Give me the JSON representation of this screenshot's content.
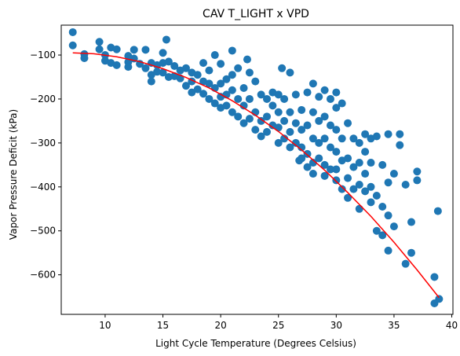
{
  "chart_data": {
    "type": "scatter",
    "title": "CAV T_LIGHT x VPD",
    "xlabel": "Light Cycle Temperature (Degrees Celsius)",
    "ylabel": "Vapor Pressure Deficit (kPa)",
    "xlim": [
      6.2,
      40.1
    ],
    "ylim": [
      -690,
      -32
    ],
    "xticks": [
      10,
      15,
      20,
      25,
      30,
      35,
      40
    ],
    "yticks": [
      -600,
      -500,
      -400,
      -300,
      -200,
      -100
    ],
    "tick_labels_x": [
      "10",
      "15",
      "20",
      "25",
      "30",
      "35",
      "40"
    ],
    "tick_labels_y": [
      "−600",
      "−500",
      "−400",
      "−300",
      "−200",
      "−100"
    ],
    "grid": false,
    "point_color": "#1f77b4",
    "fit_color": "#ff0000",
    "points": [
      [
        7.2,
        -48
      ],
      [
        7.2,
        -78
      ],
      [
        8.2,
        -98
      ],
      [
        8.2,
        -107
      ],
      [
        9.5,
        -70
      ],
      [
        9.5,
        -87
      ],
      [
        10,
        -100
      ],
      [
        10,
        -113
      ],
      [
        10.5,
        -83
      ],
      [
        10.5,
        -118
      ],
      [
        11,
        -87
      ],
      [
        11,
        -123
      ],
      [
        12,
        -102
      ],
      [
        12,
        -116
      ],
      [
        12,
        -127
      ],
      [
        12.5,
        -88
      ],
      [
        12.5,
        -108
      ],
      [
        13,
        -120
      ],
      [
        13.5,
        -88
      ],
      [
        13.5,
        -130
      ],
      [
        14,
        -118
      ],
      [
        14,
        -145
      ],
      [
        14,
        -160
      ],
      [
        14.5,
        -123
      ],
      [
        14.5,
        -138
      ],
      [
        15,
        -95
      ],
      [
        15,
        -118
      ],
      [
        15,
        -140
      ],
      [
        15.3,
        -65
      ],
      [
        15.5,
        -115
      ],
      [
        15.5,
        -150
      ],
      [
        16,
        -125
      ],
      [
        16,
        -148
      ],
      [
        16.5,
        -135
      ],
      [
        16.5,
        -153
      ],
      [
        17,
        -130
      ],
      [
        17,
        -170
      ],
      [
        17.5,
        -140
      ],
      [
        17.5,
        -160
      ],
      [
        17.5,
        -185
      ],
      [
        18,
        -145
      ],
      [
        18,
        -178
      ],
      [
        18.5,
        -118
      ],
      [
        18.5,
        -160
      ],
      [
        18.5,
        -188
      ],
      [
        19,
        -135
      ],
      [
        19,
        -165
      ],
      [
        19,
        -200
      ],
      [
        19.5,
        -100
      ],
      [
        19.5,
        -175
      ],
      [
        19.5,
        -210
      ],
      [
        20,
        -120
      ],
      [
        20,
        -165
      ],
      [
        20,
        -195
      ],
      [
        20,
        -220
      ],
      [
        20.5,
        -155
      ],
      [
        20.5,
        -190
      ],
      [
        20.5,
        -215
      ],
      [
        21,
        -90
      ],
      [
        21,
        -145
      ],
      [
        21,
        -180
      ],
      [
        21,
        -230
      ],
      [
        21.5,
        -130
      ],
      [
        21.5,
        -200
      ],
      [
        21.5,
        -240
      ],
      [
        22,
        -175
      ],
      [
        22,
        -215
      ],
      [
        22,
        -255
      ],
      [
        22.3,
        -110
      ],
      [
        22.5,
        -140
      ],
      [
        22.5,
        -200
      ],
      [
        22.5,
        -245
      ],
      [
        23,
        -160
      ],
      [
        23,
        -230
      ],
      [
        23,
        -270
      ],
      [
        23.5,
        -190
      ],
      [
        23.5,
        -250
      ],
      [
        23.5,
        -285
      ],
      [
        24,
        -200
      ],
      [
        24,
        -240
      ],
      [
        24,
        -275
      ],
      [
        24.5,
        -185
      ],
      [
        24.5,
        -215
      ],
      [
        24.5,
        -260
      ],
      [
        25,
        -190
      ],
      [
        25,
        -230
      ],
      [
        25,
        -265
      ],
      [
        25,
        -300
      ],
      [
        25.3,
        -130
      ],
      [
        25.5,
        -200
      ],
      [
        25.5,
        -250
      ],
      [
        25.5,
        -290
      ],
      [
        26,
        -140
      ],
      [
        26,
        -230
      ],
      [
        26,
        -275
      ],
      [
        26,
        -310
      ],
      [
        26.5,
        -190
      ],
      [
        26.5,
        -255
      ],
      [
        26.5,
        -300
      ],
      [
        26.8,
        -340
      ],
      [
        27,
        -225
      ],
      [
        27,
        -270
      ],
      [
        27,
        -310
      ],
      [
        27,
        -335
      ],
      [
        27.5,
        -185
      ],
      [
        27.5,
        -260
      ],
      [
        27.5,
        -325
      ],
      [
        27.5,
        -355
      ],
      [
        28,
        -165
      ],
      [
        28,
        -230
      ],
      [
        28,
        -290
      ],
      [
        28,
        -345
      ],
      [
        28,
        -370
      ],
      [
        28.5,
        -195
      ],
      [
        28.5,
        -250
      ],
      [
        28.5,
        -300
      ],
      [
        28.5,
        -335
      ],
      [
        29,
        -180
      ],
      [
        29,
        -240
      ],
      [
        29,
        -290
      ],
      [
        29,
        -350
      ],
      [
        29,
        -375
      ],
      [
        29.5,
        -200
      ],
      [
        29.5,
        -260
      ],
      [
        29.5,
        -310
      ],
      [
        29.5,
        -360
      ],
      [
        30,
        -185
      ],
      [
        30,
        -220
      ],
      [
        30,
        -270
      ],
      [
        30,
        -320
      ],
      [
        30,
        -360
      ],
      [
        30,
        -385
      ],
      [
        30.5,
        -210
      ],
      [
        30.5,
        -290
      ],
      [
        30.5,
        -340
      ],
      [
        30.5,
        -405
      ],
      [
        31,
        -255
      ],
      [
        31,
        -335
      ],
      [
        31,
        -380
      ],
      [
        31,
        -425
      ],
      [
        31.5,
        -290
      ],
      [
        31.5,
        -355
      ],
      [
        31.5,
        -405
      ],
      [
        32,
        -300
      ],
      [
        32,
        -345
      ],
      [
        32,
        -395
      ],
      [
        32,
        -450
      ],
      [
        32.5,
        -280
      ],
      [
        32.5,
        -320
      ],
      [
        32.5,
        -370
      ],
      [
        32.5,
        -410
      ],
      [
        33,
        -290
      ],
      [
        33,
        -345
      ],
      [
        33,
        -400
      ],
      [
        33,
        -435
      ],
      [
        33.5,
        -285
      ],
      [
        33.5,
        -420
      ],
      [
        33.5,
        -500
      ],
      [
        34,
        -350
      ],
      [
        34,
        -445
      ],
      [
        34,
        -510
      ],
      [
        34.5,
        -280
      ],
      [
        34.5,
        -390
      ],
      [
        34.5,
        -465
      ],
      [
        34.5,
        -545
      ],
      [
        35,
        -370
      ],
      [
        35,
        -490
      ],
      [
        35.5,
        -280
      ],
      [
        35.5,
        -305
      ],
      [
        36,
        -395
      ],
      [
        36,
        -575
      ],
      [
        36.5,
        -480
      ],
      [
        36.5,
        -550
      ],
      [
        37,
        -365
      ],
      [
        37,
        -385
      ],
      [
        38.5,
        -605
      ],
      [
        38.5,
        -665
      ],
      [
        38.8,
        -455
      ],
      [
        38.9,
        -655
      ]
    ],
    "fit_line": [
      [
        7.2,
        -95
      ],
      [
        9,
        -97
      ],
      [
        11,
        -104
      ],
      [
        13,
        -115
      ],
      [
        15,
        -131
      ],
      [
        17,
        -151
      ],
      [
        19,
        -175
      ],
      [
        21,
        -204
      ],
      [
        23,
        -237
      ],
      [
        25,
        -274
      ],
      [
        27,
        -316
      ],
      [
        29,
        -362
      ],
      [
        31,
        -413
      ],
      [
        33,
        -467
      ],
      [
        35,
        -526
      ],
      [
        37,
        -589
      ],
      [
        38.9,
        -652
      ]
    ]
  }
}
